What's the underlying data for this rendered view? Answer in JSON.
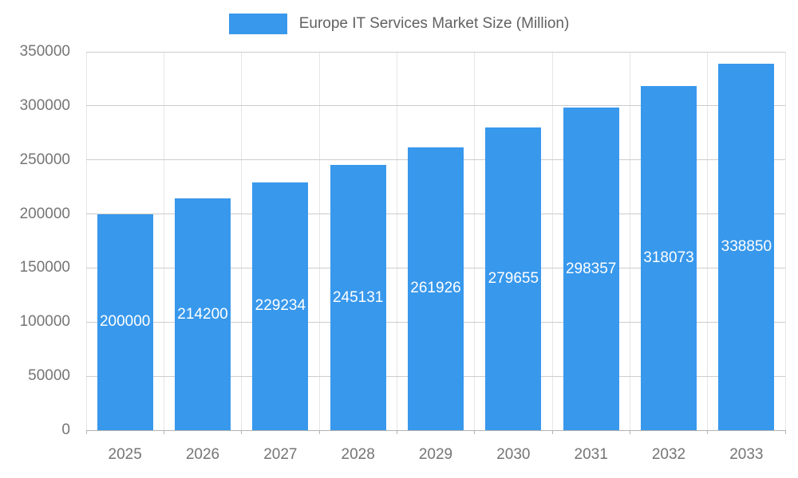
{
  "chart_data": {
    "type": "bar",
    "title": "Europe IT Services Market Size (Million)",
    "categories": [
      "2025",
      "2026",
      "2027",
      "2028",
      "2029",
      "2030",
      "2031",
      "2032",
      "2033"
    ],
    "values": [
      200000,
      214200,
      229234,
      245131,
      261926,
      279655,
      298357,
      318073,
      338850
    ],
    "ylim": [
      0,
      350000
    ],
    "yticks": [
      0,
      50000,
      100000,
      150000,
      200000,
      250000,
      300000,
      350000
    ],
    "legend_position": "top",
    "grid": true,
    "bar_color": "#3898EC",
    "value_label_color": "#ffffff",
    "axis_label_color": "#757575",
    "gridline_color": "#cccccc",
    "title_color": "#616161"
  }
}
